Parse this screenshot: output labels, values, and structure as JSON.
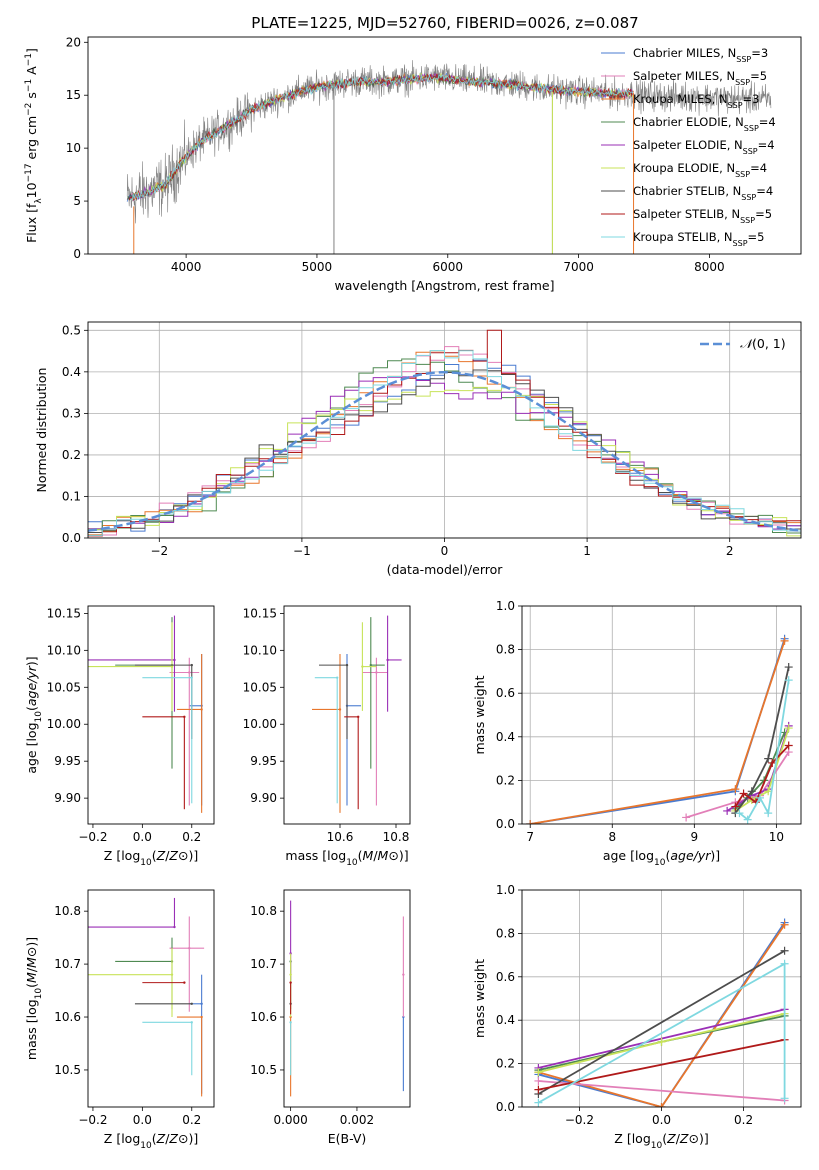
{
  "figure_title": "PLATE=1225, MJD=52760, FIBERID=0026, z=0.087",
  "colors": {
    "chabrier_miles": "#4a7bd0",
    "salpeter_miles": "#e27fb8",
    "kroupa_miles": "#e8762c",
    "chabrier_elodie": "#4f8a52",
    "salpeter_elodie": "#9a2fb6",
    "kroupa_elodie": "#c8e35a",
    "chabrier_stelib": "#4d4d4d",
    "salpeter_stelib": "#b01a1a",
    "kroupa_stelib": "#7fd8e0",
    "data": "#808080",
    "normal": "#5b8fd6"
  },
  "chart_data": [
    {
      "id": "spectrum",
      "type": "line",
      "xlabel": "wavelength [Angstrom, rest frame]",
      "ylabel": "Flux [f_λ 10^-17 erg cm^-2 s^-1 A^-1]",
      "xlim": [
        3250,
        8700
      ],
      "ylim": [
        0,
        20.5
      ],
      "xticks": [
        4000,
        5000,
        6000,
        7000,
        8000
      ],
      "yticks": [
        0,
        5,
        10,
        15,
        20
      ],
      "legend_location": "right",
      "legend": [
        {
          "key": "chabrier_miles",
          "label": "Chabrier MILES, N",
          "sub": "SSP",
          "suffix": "=3"
        },
        {
          "key": "salpeter_miles",
          "label": "Salpeter MILES, N",
          "sub": "SSP",
          "suffix": "=5"
        },
        {
          "key": "kroupa_miles",
          "label": "Kroupa MILES, N",
          "sub": "SSP",
          "suffix": "=3"
        },
        {
          "key": "chabrier_elodie",
          "label": "Chabrier ELODIE, N",
          "sub": "SSP",
          "suffix": "=4"
        },
        {
          "key": "salpeter_elodie",
          "label": "Salpeter ELODIE, N",
          "sub": "SSP",
          "suffix": "=4"
        },
        {
          "key": "kroupa_elodie",
          "label": "Kroupa ELODIE, N",
          "sub": "SSP",
          "suffix": "=4"
        },
        {
          "key": "chabrier_stelib",
          "label": "Chabrier STELIB, N",
          "sub": "SSP",
          "suffix": "=4"
        },
        {
          "key": "salpeter_stelib",
          "label": "Salpeter STELIB, N",
          "sub": "SSP",
          "suffix": "=5"
        },
        {
          "key": "kroupa_stelib",
          "label": "Kroupa STELIB, N",
          "sub": "SSP",
          "suffix": "=5"
        }
      ],
      "continuum": [
        [
          3550,
          5.2
        ],
        [
          3700,
          5.8
        ],
        [
          3850,
          6.6
        ],
        [
          3950,
          8.5
        ],
        [
          4100,
          10.5
        ],
        [
          4300,
          12.0
        ],
        [
          4500,
          13.6
        ],
        [
          4700,
          14.6
        ],
        [
          4900,
          15.5
        ],
        [
          5100,
          16.0
        ],
        [
          5300,
          16.3
        ],
        [
          5500,
          16.3
        ],
        [
          5700,
          16.5
        ],
        [
          5900,
          16.7
        ],
        [
          6100,
          16.4
        ],
        [
          6300,
          16.2
        ],
        [
          6500,
          16.0
        ],
        [
          6700,
          15.7
        ],
        [
          6900,
          15.4
        ],
        [
          7100,
          15.3
        ],
        [
          7300,
          15.1
        ],
        [
          7420,
          15.2
        ]
      ],
      "spikes": [
        [
          5130,
          0
        ],
        [
          6800,
          0
        ],
        [
          7420,
          0
        ]
      ]
    },
    {
      "id": "residuals",
      "type": "histogram",
      "xlabel": "(data-model)/error",
      "ylabel": "Normed distribution",
      "xlim": [
        -2.5,
        2.5
      ],
      "ylim": [
        0,
        0.52
      ],
      "xticks": [
        -2,
        -1,
        0,
        1,
        2
      ],
      "yticks": [
        0.0,
        0.1,
        0.2,
        0.3,
        0.4,
        0.5
      ],
      "bin_width": 0.1,
      "normal_label": "N(0,1)",
      "spike": {
        "x": 0.35,
        "y": 0.5
      }
    },
    {
      "id": "age_vs_Z",
      "type": "scatter",
      "xlabel": "Z [log10(Z/Z⊙)]",
      "ylabel": "age  [log10(age/yr)]",
      "xlim": [
        -0.22,
        0.29
      ],
      "ylim": [
        9.865,
        10.16
      ],
      "xticks": [
        -0.2,
        0.0,
        0.2
      ],
      "yticks": [
        9.9,
        9.95,
        10.0,
        10.05,
        10.1,
        10.15
      ],
      "points": [
        {
          "key": "chabrier_miles",
          "x": 0.24,
          "xerr": [
            0.05,
            0.0
          ],
          "y": 10.025,
          "yerr": [
            0.135,
            0.07
          ]
        },
        {
          "key": "salpeter_miles",
          "x": 0.19,
          "xerr": [
            0.08,
            0.04
          ],
          "y": 10.07,
          "yerr": [
            0.18,
            0.02
          ]
        },
        {
          "key": "kroupa_miles",
          "x": 0.24,
          "xerr": [
            0.1,
            0.0
          ],
          "y": 10.02,
          "yerr": [
            0.14,
            0.075
          ]
        },
        {
          "key": "chabrier_elodie",
          "x": 0.12,
          "xerr": [
            0.23,
            0.0
          ],
          "y": 10.08,
          "yerr": [
            0.14,
            0.065
          ]
        },
        {
          "key": "salpeter_elodie",
          "x": 0.13,
          "xerr": [
            0.35,
            0.0
          ],
          "y": 10.087,
          "yerr": [
            0.07,
            0.06
          ]
        },
        {
          "key": "kroupa_elodie",
          "x": 0.12,
          "xerr": [
            0.39,
            0.0
          ],
          "y": 10.078,
          "yerr": [
            0.06,
            0.06
          ]
        },
        {
          "key": "chabrier_stelib",
          "x": 0.2,
          "xerr": [
            0.23,
            0.0
          ],
          "y": 10.08,
          "yerr": [
            0.1,
            0.0
          ]
        },
        {
          "key": "salpeter_stelib",
          "x": 0.17,
          "xerr": [
            0.17,
            0.0
          ],
          "y": 10.01,
          "yerr": [
            0.125,
            0.0
          ]
        },
        {
          "key": "kroupa_stelib",
          "x": 0.2,
          "xerr": [
            0.2,
            0.0
          ],
          "y": 10.063,
          "yerr": [
            0.17,
            0.0
          ]
        }
      ]
    },
    {
      "id": "age_vs_mass",
      "type": "scatter",
      "xlabel": "mass [log10(M/M⊙)]",
      "ylabel": "",
      "xlim": [
        10.4,
        10.85
      ],
      "ylim": [
        9.865,
        10.16
      ],
      "xticks": [
        10.6,
        10.8
      ],
      "yticks": [
        9.9,
        9.95,
        10.0,
        10.05,
        10.1,
        10.15
      ],
      "points": [
        {
          "key": "chabrier_miles",
          "x": 10.625,
          "xerr": [
            0.0,
            0.05
          ],
          "y": 10.025,
          "yerr": [
            0.135,
            0.07
          ]
        },
        {
          "key": "salpeter_miles",
          "x": 10.73,
          "xerr": [
            0.05,
            0.04
          ],
          "y": 10.07,
          "yerr": [
            0.18,
            0.02
          ]
        },
        {
          "key": "kroupa_miles",
          "x": 10.6,
          "xerr": [
            0.1,
            0.0
          ],
          "y": 10.02,
          "yerr": [
            0.14,
            0.075
          ]
        },
        {
          "key": "chabrier_elodie",
          "x": 10.71,
          "xerr": [
            0.0,
            0.05
          ],
          "y": 10.08,
          "yerr": [
            0.14,
            0.065
          ]
        },
        {
          "key": "salpeter_elodie",
          "x": 10.77,
          "xerr": [
            0.0,
            0.05
          ],
          "y": 10.087,
          "yerr": [
            0.07,
            0.06
          ]
        },
        {
          "key": "kroupa_elodie",
          "x": 10.68,
          "xerr": [
            0.0,
            0.05
          ],
          "y": 10.078,
          "yerr": [
            0.06,
            0.06
          ]
        },
        {
          "key": "chabrier_stelib",
          "x": 10.625,
          "xerr": [
            0.1,
            0.0
          ],
          "y": 10.08,
          "yerr": [
            0.1,
            0.0
          ]
        },
        {
          "key": "salpeter_stelib",
          "x": 10.665,
          "xerr": [
            0.05,
            0.0
          ],
          "y": 10.01,
          "yerr": [
            0.125,
            0.0
          ]
        },
        {
          "key": "kroupa_stelib",
          "x": 10.59,
          "xerr": [
            0.08,
            0.0
          ],
          "y": 10.063,
          "yerr": [
            0.17,
            0.0
          ]
        }
      ]
    },
    {
      "id": "mass_weight_vs_age",
      "type": "line",
      "xlabel": "age  [log10(age/yr)]",
      "ylabel": "mass weight",
      "xlim": [
        6.9,
        10.3
      ],
      "ylim": [
        0,
        1.0
      ],
      "xticks": [
        7,
        8,
        9,
        10
      ],
      "yticks": [
        0.0,
        0.2,
        0.4,
        0.6,
        0.8,
        1.0
      ],
      "series": [
        {
          "key": "chabrier_miles",
          "x": [
            7.0,
            9.5,
            10.1
          ],
          "y": [
            0.0,
            0.15,
            0.85
          ]
        },
        {
          "key": "kroupa_miles",
          "x": [
            7.0,
            9.5,
            10.1
          ],
          "y": [
            0.0,
            0.16,
            0.84
          ]
        },
        {
          "key": "salpeter_miles",
          "x": [
            8.9,
            9.5,
            9.8,
            10.15
          ],
          "y": [
            0.03,
            0.1,
            0.13,
            0.33
          ]
        },
        {
          "key": "chabrier_elodie",
          "x": [
            9.5,
            9.65,
            9.85,
            10.1
          ],
          "y": [
            0.07,
            0.12,
            0.2,
            0.42
          ]
        },
        {
          "key": "salpeter_elodie",
          "x": [
            9.4,
            9.7,
            9.9,
            10.15
          ],
          "y": [
            0.06,
            0.13,
            0.16,
            0.45
          ]
        },
        {
          "key": "kroupa_elodie",
          "x": [
            9.5,
            9.7,
            9.9,
            10.15
          ],
          "y": [
            0.06,
            0.11,
            0.15,
            0.44
          ]
        },
        {
          "key": "chabrier_stelib",
          "x": [
            9.5,
            9.7,
            9.9,
            10.15
          ],
          "y": [
            0.05,
            0.15,
            0.3,
            0.72
          ]
        },
        {
          "key": "salpeter_stelib",
          "x": [
            9.5,
            9.6,
            9.75,
            9.95,
            10.15
          ],
          "y": [
            0.08,
            0.14,
            0.1,
            0.28,
            0.36
          ]
        },
        {
          "key": "kroupa_stelib",
          "x": [
            9.55,
            9.65,
            9.8,
            9.9,
            10.15
          ],
          "y": [
            0.05,
            0.02,
            0.12,
            0.05,
            0.66
          ]
        }
      ]
    },
    {
      "id": "mass_vs_Z",
      "type": "scatter",
      "xlabel": "Z [log10(Z/Z⊙)]",
      "ylabel": "mass [log10(M/M⊙)]",
      "xlim": [
        -0.22,
        0.29
      ],
      "ylim": [
        10.43,
        10.84
      ],
      "xticks": [
        -0.2,
        0.0,
        0.2
      ],
      "yticks": [
        10.5,
        10.6,
        10.7,
        10.8
      ],
      "points": [
        {
          "key": "chabrier_miles",
          "x": 0.24,
          "xerr": [
            0.05,
            0.0
          ],
          "y": 10.625,
          "yerr": [
            0.17,
            0.055
          ]
        },
        {
          "key": "salpeter_miles",
          "x": 0.19,
          "xerr": [
            0.08,
            0.06
          ],
          "y": 10.73,
          "yerr": [
            0.12,
            0.06
          ]
        },
        {
          "key": "kroupa_miles",
          "x": 0.24,
          "xerr": [
            0.1,
            0.0
          ],
          "y": 10.6,
          "yerr": [
            0.15,
            0.0
          ]
        },
        {
          "key": "chabrier_elodie",
          "x": 0.12,
          "xerr": [
            0.23,
            0.0
          ],
          "y": 10.705,
          "yerr": [
            0.09,
            0.045
          ]
        },
        {
          "key": "salpeter_elodie",
          "x": 0.13,
          "xerr": [
            0.35,
            0.0
          ],
          "y": 10.77,
          "yerr": [
            0.0,
            0.055
          ]
        },
        {
          "key": "kroupa_elodie",
          "x": 0.12,
          "xerr": [
            0.39,
            0.0
          ],
          "y": 10.68,
          "yerr": [
            0.08,
            0.05
          ]
        },
        {
          "key": "chabrier_stelib",
          "x": 0.2,
          "xerr": [
            0.23,
            0.0
          ],
          "y": 10.625,
          "yerr": [
            0.0,
            0.0
          ]
        },
        {
          "key": "salpeter_stelib",
          "x": 0.17,
          "xerr": [
            0.17,
            0.0
          ],
          "y": 10.665,
          "yerr": [
            0.0,
            0.0
          ]
        },
        {
          "key": "kroupa_stelib",
          "x": 0.2,
          "xerr": [
            0.2,
            0.0
          ],
          "y": 10.59,
          "yerr": [
            0.1,
            0.0
          ]
        }
      ]
    },
    {
      "id": "mass_vs_ebv",
      "type": "scatter",
      "xlabel": "E(B-V)",
      "ylabel": "",
      "xlim": [
        -0.0002,
        0.0036
      ],
      "ylim": [
        10.43,
        10.84
      ],
      "xticks": [
        0.0,
        0.002
      ],
      "yticks": [
        10.5,
        10.6,
        10.7,
        10.8
      ],
      "points": [
        {
          "key": "chabrier_miles",
          "x": 0.0034,
          "y": 10.6,
          "yerr": [
            0.14,
            0.0
          ]
        },
        {
          "key": "salpeter_miles",
          "x": 0.0034,
          "y": 10.68,
          "yerr": [
            0.08,
            0.11
          ]
        },
        {
          "key": "kroupa_miles",
          "x": 0.0,
          "y": 10.6,
          "yerr": [
            0.15,
            0.0
          ]
        },
        {
          "key": "chabrier_elodie",
          "x": 0.0,
          "y": 10.705,
          "yerr": [
            0.09,
            0.0
          ]
        },
        {
          "key": "salpeter_elodie",
          "x": 0.0,
          "y": 10.72,
          "yerr": [
            0.05,
            0.1
          ]
        },
        {
          "key": "kroupa_elodie",
          "x": 0.0,
          "y": 10.68,
          "yerr": [
            0.08,
            0.04
          ]
        },
        {
          "key": "chabrier_stelib",
          "x": 0.0,
          "y": 10.625,
          "yerr": [
            0.0,
            0.0
          ]
        },
        {
          "key": "salpeter_stelib",
          "x": 0.0,
          "y": 10.665,
          "yerr": [
            0.06,
            0.0
          ]
        },
        {
          "key": "kroupa_stelib",
          "x": 0.0,
          "y": 10.59,
          "yerr": [
            0.1,
            0.0
          ]
        }
      ]
    },
    {
      "id": "mass_weight_vs_Z",
      "type": "line",
      "xlabel": "Z [log10(Z/Z⊙)]",
      "ylabel": "mass weight",
      "xlim": [
        -0.34,
        0.34
      ],
      "ylim": [
        0,
        1.0
      ],
      "xticks": [
        -0.2,
        0.0,
        0.2
      ],
      "yticks": [
        0.0,
        0.2,
        0.4,
        0.6,
        0.8,
        1.0
      ],
      "series": [
        {
          "key": "chabrier_miles",
          "x": [
            -0.3,
            0.0,
            0.3
          ],
          "y": [
            0.15,
            0.0,
            0.85
          ]
        },
        {
          "key": "kroupa_miles",
          "x": [
            -0.3,
            0.0,
            0.3
          ],
          "y": [
            0.16,
            0.0,
            0.84
          ]
        },
        {
          "key": "salpeter_miles",
          "x": [
            -0.3,
            0.3
          ],
          "y": [
            0.12,
            0.03
          ]
        },
        {
          "key": "chabrier_elodie",
          "x": [
            -0.3,
            0.0,
            0.3
          ],
          "y": [
            0.17,
            0.3,
            0.42
          ]
        },
        {
          "key": "salpeter_elodie",
          "x": [
            -0.3,
            0.3
          ],
          "y": [
            0.18,
            0.45
          ]
        },
        {
          "key": "kroupa_elodie",
          "x": [
            -0.3,
            0.0,
            0.3
          ],
          "y": [
            0.16,
            0.3,
            0.43
          ]
        },
        {
          "key": "chabrier_stelib",
          "x": [
            -0.3,
            0.3
          ],
          "y": [
            0.06,
            0.72
          ]
        },
        {
          "key": "salpeter_stelib",
          "x": [
            -0.3,
            0.3
          ],
          "y": [
            0.08,
            0.31
          ]
        },
        {
          "key": "kroupa_stelib",
          "x": [
            -0.3,
            0.3,
            0.3
          ],
          "y": [
            0.02,
            0.66,
            0.04
          ]
        }
      ]
    }
  ]
}
